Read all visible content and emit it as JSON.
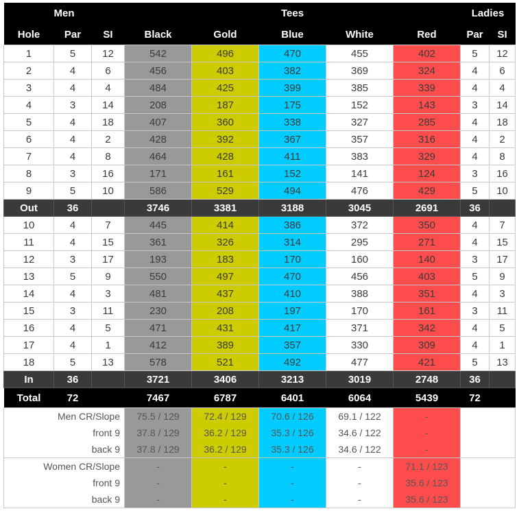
{
  "header": {
    "men": "Men",
    "tees": "Tees",
    "ladies": "Ladies",
    "hole": "Hole",
    "par": "Par",
    "si": "SI",
    "black": "Black",
    "gold": "Gold",
    "blue": "Blue",
    "white": "White",
    "red": "Red",
    "ladies_par": "Par",
    "ladies_si": "SI"
  },
  "colors": {
    "black": "#999999",
    "gold": "#cccc00",
    "blue": "#00ccff",
    "white": "#ffffff",
    "red": "#ff4d4d"
  },
  "front_nine": [
    {
      "hole": "1",
      "par": "5",
      "si": "12",
      "black": "542",
      "gold": "496",
      "blue": "470",
      "white": "455",
      "red": "402",
      "lpar": "5",
      "lsi": "12"
    },
    {
      "hole": "2",
      "par": "4",
      "si": "6",
      "black": "456",
      "gold": "403",
      "blue": "382",
      "white": "369",
      "red": "324",
      "lpar": "4",
      "lsi": "6"
    },
    {
      "hole": "3",
      "par": "4",
      "si": "4",
      "black": "484",
      "gold": "425",
      "blue": "399",
      "white": "385",
      "red": "339",
      "lpar": "4",
      "lsi": "4"
    },
    {
      "hole": "4",
      "par": "3",
      "si": "14",
      "black": "208",
      "gold": "187",
      "blue": "175",
      "white": "152",
      "red": "143",
      "lpar": "3",
      "lsi": "14"
    },
    {
      "hole": "5",
      "par": "4",
      "si": "18",
      "black": "407",
      "gold": "360",
      "blue": "338",
      "white": "327",
      "red": "285",
      "lpar": "4",
      "lsi": "18"
    },
    {
      "hole": "6",
      "par": "4",
      "si": "2",
      "black": "428",
      "gold": "392",
      "blue": "367",
      "white": "357",
      "red": "316",
      "lpar": "4",
      "lsi": "2"
    },
    {
      "hole": "7",
      "par": "4",
      "si": "8",
      "black": "464",
      "gold": "428",
      "blue": "411",
      "white": "383",
      "red": "329",
      "lpar": "4",
      "lsi": "8"
    },
    {
      "hole": "8",
      "par": "3",
      "si": "16",
      "black": "171",
      "gold": "161",
      "blue": "152",
      "white": "141",
      "red": "124",
      "lpar": "3",
      "lsi": "16"
    },
    {
      "hole": "9",
      "par": "5",
      "si": "10",
      "black": "586",
      "gold": "529",
      "blue": "494",
      "white": "476",
      "red": "429",
      "lpar": "5",
      "lsi": "10"
    }
  ],
  "out": {
    "label": "Out",
    "par": "36",
    "si": "",
    "black": "3746",
    "gold": "3381",
    "blue": "3188",
    "white": "3045",
    "red": "2691",
    "lpar": "36",
    "lsi": ""
  },
  "back_nine": [
    {
      "hole": "10",
      "par": "4",
      "si": "7",
      "black": "445",
      "gold": "414",
      "blue": "386",
      "white": "372",
      "red": "350",
      "lpar": "4",
      "lsi": "7"
    },
    {
      "hole": "11",
      "par": "4",
      "si": "15",
      "black": "361",
      "gold": "326",
      "blue": "314",
      "white": "295",
      "red": "271",
      "lpar": "4",
      "lsi": "15"
    },
    {
      "hole": "12",
      "par": "3",
      "si": "17",
      "black": "193",
      "gold": "183",
      "blue": "170",
      "white": "160",
      "red": "140",
      "lpar": "3",
      "lsi": "17"
    },
    {
      "hole": "13",
      "par": "5",
      "si": "9",
      "black": "550",
      "gold": "497",
      "blue": "470",
      "white": "456",
      "red": "403",
      "lpar": "5",
      "lsi": "9"
    },
    {
      "hole": "14",
      "par": "4",
      "si": "3",
      "black": "481",
      "gold": "437",
      "blue": "410",
      "white": "388",
      "red": "351",
      "lpar": "4",
      "lsi": "3"
    },
    {
      "hole": "15",
      "par": "3",
      "si": "11",
      "black": "230",
      "gold": "208",
      "blue": "197",
      "white": "170",
      "red": "161",
      "lpar": "3",
      "lsi": "11"
    },
    {
      "hole": "16",
      "par": "4",
      "si": "5",
      "black": "471",
      "gold": "431",
      "blue": "417",
      "white": "371",
      "red": "342",
      "lpar": "4",
      "lsi": "5"
    },
    {
      "hole": "17",
      "par": "4",
      "si": "1",
      "black": "412",
      "gold": "389",
      "blue": "357",
      "white": "330",
      "red": "309",
      "lpar": "4",
      "lsi": "1"
    },
    {
      "hole": "18",
      "par": "5",
      "si": "13",
      "black": "578",
      "gold": "521",
      "blue": "492",
      "white": "477",
      "red": "421",
      "lpar": "5",
      "lsi": "13"
    }
  ],
  "in": {
    "label": "In",
    "par": "36",
    "si": "",
    "black": "3721",
    "gold": "3406",
    "blue": "3213",
    "white": "3019",
    "red": "2748",
    "lpar": "36",
    "lsi": ""
  },
  "total": {
    "label": "Total",
    "par": "72",
    "si": "",
    "black": "7467",
    "gold": "6787",
    "blue": "6401",
    "white": "6064",
    "red": "5439",
    "lpar": "72",
    "lsi": ""
  },
  "men_ratings": [
    {
      "label": "Men CR/Slope",
      "black": "75.5 / 129",
      "gold": "72.4 / 129",
      "blue": "70.6 / 126",
      "white": "69.1 / 122",
      "red": "-"
    },
    {
      "label": "front 9",
      "black": "37.8 / 129",
      "gold": "36.2 / 129",
      "blue": "35.3 / 126",
      "white": "34.6 / 122",
      "red": "-"
    },
    {
      "label": "back 9",
      "black": "37.8 / 129",
      "gold": "36.2 / 129",
      "blue": "35.3 / 126",
      "white": "34.6 / 122",
      "red": "-"
    }
  ],
  "women_ratings": [
    {
      "label": "Women CR/Slope",
      "black": "-",
      "gold": "-",
      "blue": "-",
      "white": "-",
      "red": "71.1 / 123"
    },
    {
      "label": "front 9",
      "black": "-",
      "gold": "-",
      "blue": "-",
      "white": "-",
      "red": "35.6 / 123"
    },
    {
      "label": "back 9",
      "black": "-",
      "gold": "-",
      "blue": "-",
      "white": "-",
      "red": "35.6 / 123"
    }
  ]
}
